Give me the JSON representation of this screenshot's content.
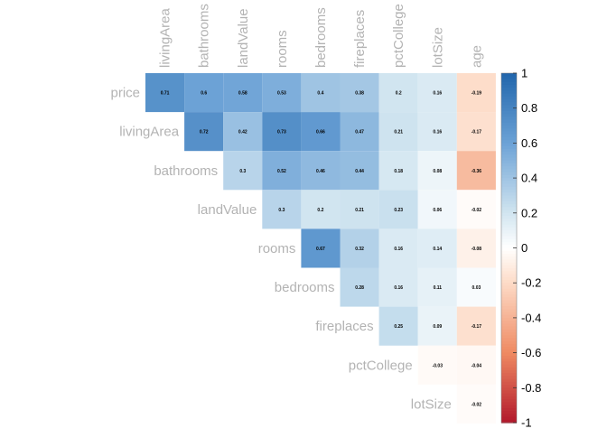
{
  "chart_data": {
    "type": "heatmap",
    "layout": "upper-triangle",
    "variables": [
      "price",
      "livingArea",
      "bathrooms",
      "landValue",
      "rooms",
      "bedrooms",
      "fireplaces",
      "pctCollege",
      "lotSize",
      "age"
    ],
    "row_labels": [
      "price",
      "livingArea",
      "bathrooms",
      "landValue",
      "rooms",
      "bedrooms",
      "fireplaces",
      "pctCollege",
      "lotSize"
    ],
    "column_labels": [
      "livingArea",
      "bathrooms",
      "landValue",
      "rooms",
      "bedrooms",
      "fireplaces",
      "pctCollege",
      "lotSize",
      "age"
    ],
    "cells": [
      {
        "row": "price",
        "col": "livingArea",
        "value": 0.71,
        "label": "0.71"
      },
      {
        "row": "price",
        "col": "bathrooms",
        "value": 0.6,
        "label": "0.6"
      },
      {
        "row": "price",
        "col": "landValue",
        "value": 0.58,
        "label": "0.58"
      },
      {
        "row": "price",
        "col": "rooms",
        "value": 0.53,
        "label": "0.53"
      },
      {
        "row": "price",
        "col": "bedrooms",
        "value": 0.4,
        "label": "0.4"
      },
      {
        "row": "price",
        "col": "fireplaces",
        "value": 0.38,
        "label": "0.38"
      },
      {
        "row": "price",
        "col": "pctCollege",
        "value": 0.2,
        "label": "0.2"
      },
      {
        "row": "price",
        "col": "lotSize",
        "value": 0.16,
        "label": "0.16"
      },
      {
        "row": "price",
        "col": "age",
        "value": -0.19,
        "label": "-0.19"
      },
      {
        "row": "livingArea",
        "col": "bathrooms",
        "value": 0.72,
        "label": "0.72"
      },
      {
        "row": "livingArea",
        "col": "landValue",
        "value": 0.42,
        "label": "0.42"
      },
      {
        "row": "livingArea",
        "col": "rooms",
        "value": 0.73,
        "label": "0.73"
      },
      {
        "row": "livingArea",
        "col": "bedrooms",
        "value": 0.66,
        "label": "0.66"
      },
      {
        "row": "livingArea",
        "col": "fireplaces",
        "value": 0.47,
        "label": "0.47"
      },
      {
        "row": "livingArea",
        "col": "pctCollege",
        "value": 0.21,
        "label": "0.21"
      },
      {
        "row": "livingArea",
        "col": "lotSize",
        "value": 0.16,
        "label": "0.16"
      },
      {
        "row": "livingArea",
        "col": "age",
        "value": -0.17,
        "label": "-0.17"
      },
      {
        "row": "bathrooms",
        "col": "landValue",
        "value": 0.3,
        "label": "0.3"
      },
      {
        "row": "bathrooms",
        "col": "rooms",
        "value": 0.52,
        "label": "0.52"
      },
      {
        "row": "bathrooms",
        "col": "bedrooms",
        "value": 0.46,
        "label": "0.46"
      },
      {
        "row": "bathrooms",
        "col": "fireplaces",
        "value": 0.44,
        "label": "0.44"
      },
      {
        "row": "bathrooms",
        "col": "pctCollege",
        "value": 0.18,
        "label": "0.18"
      },
      {
        "row": "bathrooms",
        "col": "lotSize",
        "value": 0.08,
        "label": "0.08"
      },
      {
        "row": "bathrooms",
        "col": "age",
        "value": -0.36,
        "label": "-0.36"
      },
      {
        "row": "landValue",
        "col": "rooms",
        "value": 0.3,
        "label": "0.3"
      },
      {
        "row": "landValue",
        "col": "bedrooms",
        "value": 0.2,
        "label": "0.2"
      },
      {
        "row": "landValue",
        "col": "fireplaces",
        "value": 0.21,
        "label": "0.21"
      },
      {
        "row": "landValue",
        "col": "pctCollege",
        "value": 0.23,
        "label": "0.23"
      },
      {
        "row": "landValue",
        "col": "lotSize",
        "value": 0.06,
        "label": "0.06"
      },
      {
        "row": "landValue",
        "col": "age",
        "value": -0.02,
        "label": "-0.02"
      },
      {
        "row": "rooms",
        "col": "bedrooms",
        "value": 0.67,
        "label": "0.67"
      },
      {
        "row": "rooms",
        "col": "fireplaces",
        "value": 0.32,
        "label": "0.32"
      },
      {
        "row": "rooms",
        "col": "pctCollege",
        "value": 0.16,
        "label": "0.16"
      },
      {
        "row": "rooms",
        "col": "lotSize",
        "value": 0.14,
        "label": "0.14"
      },
      {
        "row": "rooms",
        "col": "age",
        "value": -0.08,
        "label": "-0.08"
      },
      {
        "row": "bedrooms",
        "col": "fireplaces",
        "value": 0.28,
        "label": "0.28"
      },
      {
        "row": "bedrooms",
        "col": "pctCollege",
        "value": 0.16,
        "label": "0.16"
      },
      {
        "row": "bedrooms",
        "col": "lotSize",
        "value": 0.11,
        "label": "0.11"
      },
      {
        "row": "bedrooms",
        "col": "age",
        "value": 0.03,
        "label": "0.03"
      },
      {
        "row": "fireplaces",
        "col": "pctCollege",
        "value": 0.25,
        "label": "0.25"
      },
      {
        "row": "fireplaces",
        "col": "lotSize",
        "value": 0.09,
        "label": "0.09"
      },
      {
        "row": "fireplaces",
        "col": "age",
        "value": -0.17,
        "label": "-0.17"
      },
      {
        "row": "pctCollege",
        "col": "lotSize",
        "value": -0.03,
        "label": "-0.03"
      },
      {
        "row": "pctCollege",
        "col": "age",
        "value": -0.04,
        "label": "-0.04"
      },
      {
        "row": "lotSize",
        "col": "age",
        "value": -0.02,
        "label": "-0.02"
      }
    ],
    "colorbar": {
      "range": [
        -1,
        1
      ],
      "ticks": [
        "1",
        "0.8",
        "0.6",
        "0.4",
        "0.2",
        "0",
        "-0.2",
        "-0.4",
        "-0.6",
        "-0.8",
        "-1"
      ],
      "tick_values": [
        1,
        0.8,
        0.6,
        0.4,
        0.2,
        0,
        -0.2,
        -0.4,
        -0.6,
        -0.8,
        -1
      ],
      "colors": {
        "negative_end": "#b2182b",
        "negative_mid": "#ef8a62",
        "negative_light": "#fddbc7",
        "zero": "#ffffff",
        "positive_light": "#d1e5f0",
        "positive_mid": "#6ca2d6",
        "positive_end": "#2166ac"
      }
    },
    "label_color": "#b3b3b3",
    "grid": false,
    "legend_placement": "right"
  }
}
